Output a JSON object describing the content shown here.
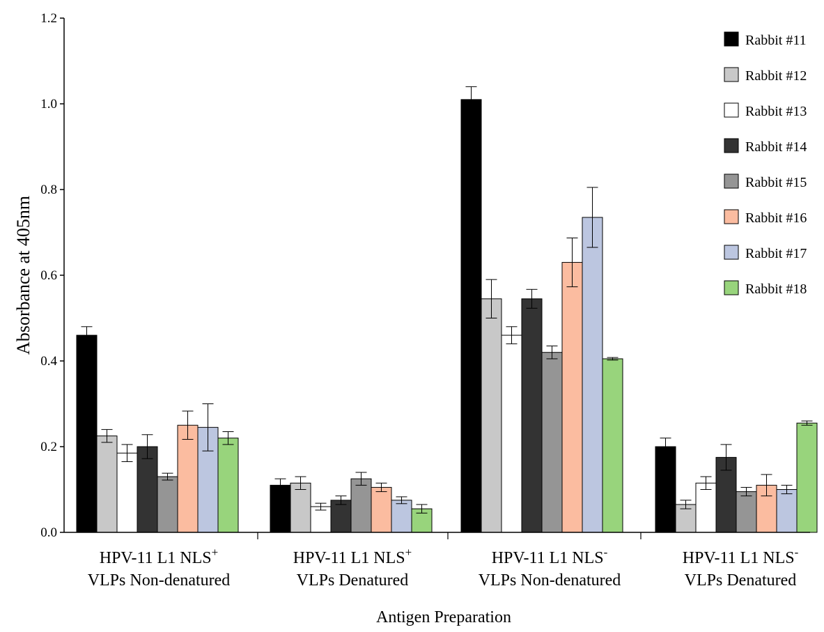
{
  "chart_data": {
    "type": "bar",
    "title": "",
    "xlabel": "Antigen Preparation",
    "ylabel": "Absorbance at 405nm",
    "ylim": [
      0,
      1.2
    ],
    "yticks": [
      "0.0",
      "0.2",
      "0.4",
      "0.6",
      "0.8",
      "1.0",
      "1.2"
    ],
    "legend_position": "top-right",
    "grid": false,
    "categories": [
      {
        "line1": "HPV-11 L1 NLS",
        "sup": "+",
        "line2": "VLPs Non-denatured"
      },
      {
        "line1": "HPV-11 L1 NLS",
        "sup": "+",
        "line2": "VLPs Denatured"
      },
      {
        "line1": "HPV-11 L1 NLS",
        "sup": "-",
        "line2": "VLPs Non-denatured"
      },
      {
        "line1": "HPV-11 L1 NLS",
        "sup": "-",
        "line2": "VLPs  Denatured"
      }
    ],
    "series": [
      {
        "name": "Rabbit #11",
        "color": "#000000",
        "values": [
          0.46,
          0.11,
          1.01,
          0.2
        ],
        "errors": [
          0.02,
          0.015,
          0.03,
          0.02
        ]
      },
      {
        "name": "Rabbit #12",
        "color": "#c8c8c8",
        "values": [
          0.225,
          0.115,
          0.545,
          0.065
        ],
        "errors": [
          0.015,
          0.015,
          0.045,
          0.01
        ]
      },
      {
        "name": "Rabbit #13",
        "color": "#ffffff",
        "values": [
          0.185,
          0.06,
          0.46,
          0.115
        ],
        "errors": [
          0.02,
          0.008,
          0.02,
          0.015
        ]
      },
      {
        "name": "Rabbit #14",
        "color": "#333333",
        "values": [
          0.2,
          0.075,
          0.545,
          0.175
        ],
        "errors": [
          0.028,
          0.01,
          0.022,
          0.03
        ]
      },
      {
        "name": "Rabbit #15",
        "color": "#959595",
        "values": [
          0.13,
          0.125,
          0.42,
          0.095
        ],
        "errors": [
          0.008,
          0.015,
          0.015,
          0.01
        ]
      },
      {
        "name": "Rabbit #16",
        "color": "#fbbca0",
        "values": [
          0.25,
          0.105,
          0.63,
          0.11
        ],
        "errors": [
          0.033,
          0.01,
          0.057,
          0.025
        ]
      },
      {
        "name": "Rabbit #17",
        "color": "#bcc6e0",
        "values": [
          0.245,
          0.075,
          0.735,
          0.1
        ],
        "errors": [
          0.055,
          0.008,
          0.07,
          0.01
        ]
      },
      {
        "name": "Rabbit #18",
        "color": "#98d47c",
        "values": [
          0.22,
          0.055,
          0.405,
          0.255
        ],
        "errors": [
          0.015,
          0.01,
          0.003,
          0.005
        ]
      }
    ]
  }
}
